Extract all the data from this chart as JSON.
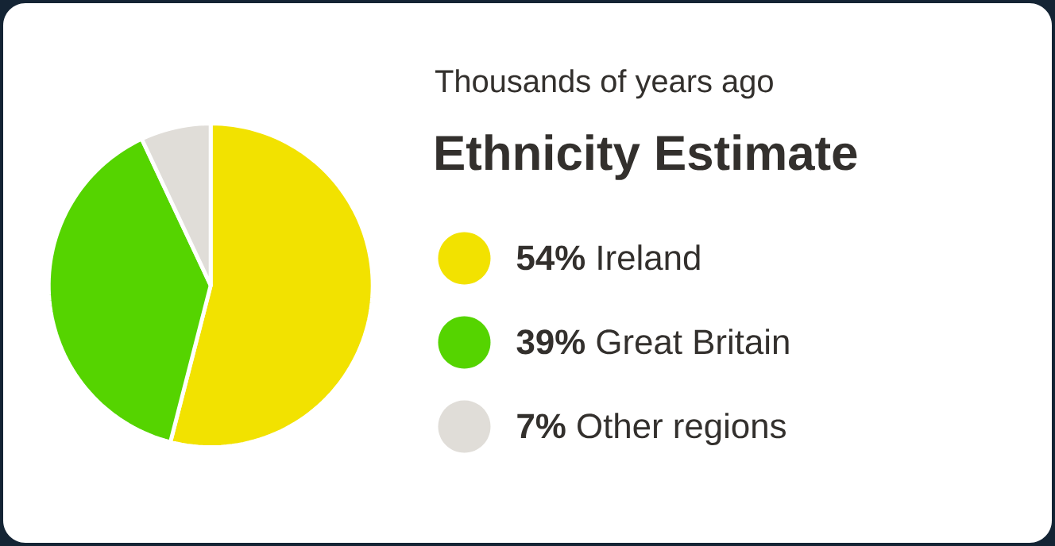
{
  "chart_data": {
    "type": "pie",
    "subtitle": "Thousands of years ago",
    "title": "Ethnicity Estimate",
    "categories": [
      "**54%** Ireland",
      "**39%** Great Britain",
      "**7%** Other regions"
    ],
    "values": [
      54,
      39,
      7
    ],
    "colors": [
      "#f2e200",
      "#55d400",
      "#e0ddd8"
    ],
    "legend": "right"
  }
}
